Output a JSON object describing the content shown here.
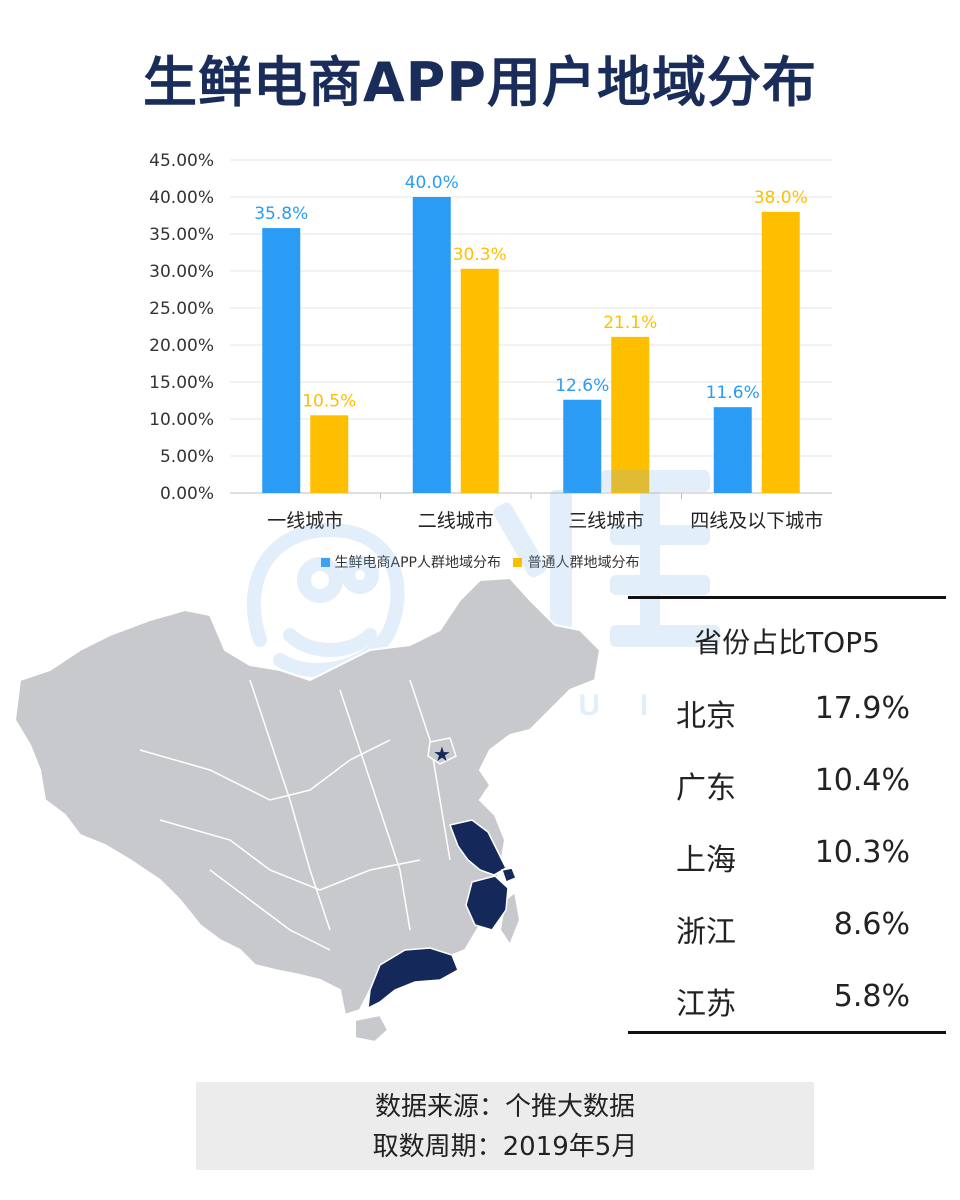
{
  "title": "生鲜电商APP用户地域分布",
  "colors": {
    "series1": "#2a9cf5",
    "series2": "#fdbf00",
    "highlight": "#14285a",
    "map_base": "#c8c9cc",
    "title": "#1a2d5a"
  },
  "chart_data": {
    "type": "bar",
    "categories": [
      "一线城市",
      "二线城市",
      "三线城市",
      "四线及以下城市"
    ],
    "series": [
      {
        "name": "生鲜电商APP人群地域分布",
        "values": [
          35.8,
          40.0,
          12.6,
          11.6
        ],
        "labels": [
          "35.8%",
          "40.0%",
          "12.6%",
          "11.6%"
        ]
      },
      {
        "name": "普通人群地域分布",
        "values": [
          10.5,
          30.3,
          21.1,
          38.0
        ],
        "labels": [
          "10.5%",
          "30.3%",
          "21.1%",
          "38.0%"
        ]
      }
    ],
    "ylim": [
      0,
      45
    ],
    "yticks": [
      "0.00%",
      "5.00%",
      "10.00%",
      "15.00%",
      "20.00%",
      "25.00%",
      "30.00%",
      "35.00%",
      "40.00%",
      "45.00%"
    ],
    "legend_position": "bottom",
    "grid": true
  },
  "top5": {
    "title": "省份占比TOP5",
    "rows": [
      {
        "name": "北京",
        "pct": "17.9%"
      },
      {
        "name": "广东",
        "pct": "10.4%"
      },
      {
        "name": "上海",
        "pct": "10.3%"
      },
      {
        "name": "浙江",
        "pct": "8.6%"
      },
      {
        "name": "江苏",
        "pct": "5.8%"
      }
    ]
  },
  "map": {
    "highlighted_provinces": [
      "北京",
      "广东",
      "上海",
      "浙江",
      "江苏"
    ],
    "capital_marker": "star-icon"
  },
  "watermark": {
    "text": "个推",
    "subtext": "TUI"
  },
  "source": {
    "line1": "数据来源：个推大数据",
    "line2": "取数周期：2019年5月"
  }
}
